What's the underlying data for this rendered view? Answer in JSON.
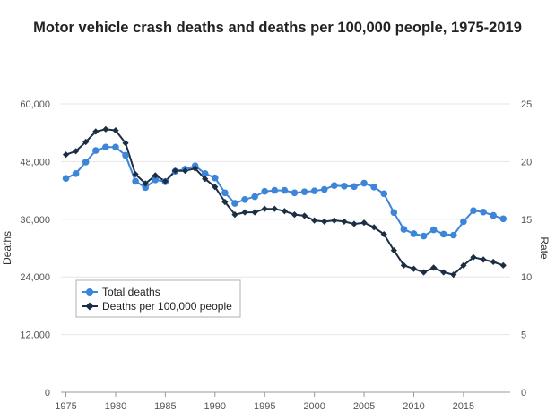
{
  "chart_data": {
    "type": "line",
    "title": "Motor vehicle crash deaths and deaths per 100,000 people, 1975-2019",
    "xlabel": "",
    "ylabel_left": "Deaths",
    "ylabel_right": "Rate",
    "x": [
      1975,
      1976,
      1977,
      1978,
      1979,
      1980,
      1981,
      1982,
      1983,
      1984,
      1985,
      1986,
      1987,
      1988,
      1989,
      1990,
      1991,
      1992,
      1993,
      1994,
      1995,
      1996,
      1997,
      1998,
      1999,
      2000,
      2001,
      2002,
      2003,
      2004,
      2005,
      2006,
      2007,
      2008,
      2009,
      2010,
      2011,
      2012,
      2013,
      2014,
      2015,
      2016,
      2017,
      2018,
      2019
    ],
    "x_ticks": [
      "1975",
      "1980",
      "1985",
      "1990",
      "1995",
      "2000",
      "2005",
      "2010",
      "2015"
    ],
    "x_tick_values": [
      1975,
      1980,
      1985,
      1990,
      1995,
      2000,
      2005,
      2010,
      2015
    ],
    "xlim": [
      1974.5,
      2019.7
    ],
    "ylim_left": [
      0,
      60000
    ],
    "ylim_right": [
      0,
      25
    ],
    "y_ticks_left": [
      "0",
      "12,000",
      "24,000",
      "36,000",
      "48,000",
      "60,000"
    ],
    "y_tick_values_left": [
      0,
      12000,
      24000,
      36000,
      48000,
      60000
    ],
    "y_ticks_right": [
      "0",
      "5",
      "10",
      "15",
      "20",
      "25"
    ],
    "y_tick_values_right": [
      0,
      5,
      10,
      15,
      20,
      25
    ],
    "grid": true,
    "legend_position": "bottom-left",
    "series": [
      {
        "name": "Total deaths",
        "axis": "left",
        "color": "#3d85d8",
        "marker": "circle",
        "values": [
          44500,
          45500,
          47900,
          50300,
          51000,
          51000,
          49300,
          43900,
          42600,
          44200,
          43800,
          46000,
          46400,
          47100,
          45500,
          44600,
          41500,
          39300,
          40100,
          40700,
          41800,
          42000,
          42000,
          41500,
          41700,
          41900,
          42200,
          43000,
          42900,
          42800,
          43500,
          42700,
          41300,
          37400,
          33900,
          33000,
          32500,
          33800,
          32900,
          32700,
          35500,
          37800,
          37500,
          36800,
          36100
        ]
      },
      {
        "name": "Deaths per 100,000 people",
        "axis": "right",
        "color": "#1c2e44",
        "marker": "diamond",
        "values": [
          20.6,
          20.9,
          21.7,
          22.6,
          22.8,
          22.7,
          21.6,
          18.9,
          18.1,
          18.8,
          18.3,
          19.2,
          19.2,
          19.4,
          18.5,
          17.8,
          16.5,
          15.4,
          15.6,
          15.6,
          15.9,
          15.9,
          15.7,
          15.4,
          15.3,
          14.9,
          14.8,
          14.9,
          14.8,
          14.6,
          14.7,
          14.3,
          13.7,
          12.3,
          11.0,
          10.7,
          10.4,
          10.8,
          10.4,
          10.2,
          11.0,
          11.7,
          11.5,
          11.3,
          11.0
        ]
      }
    ]
  }
}
